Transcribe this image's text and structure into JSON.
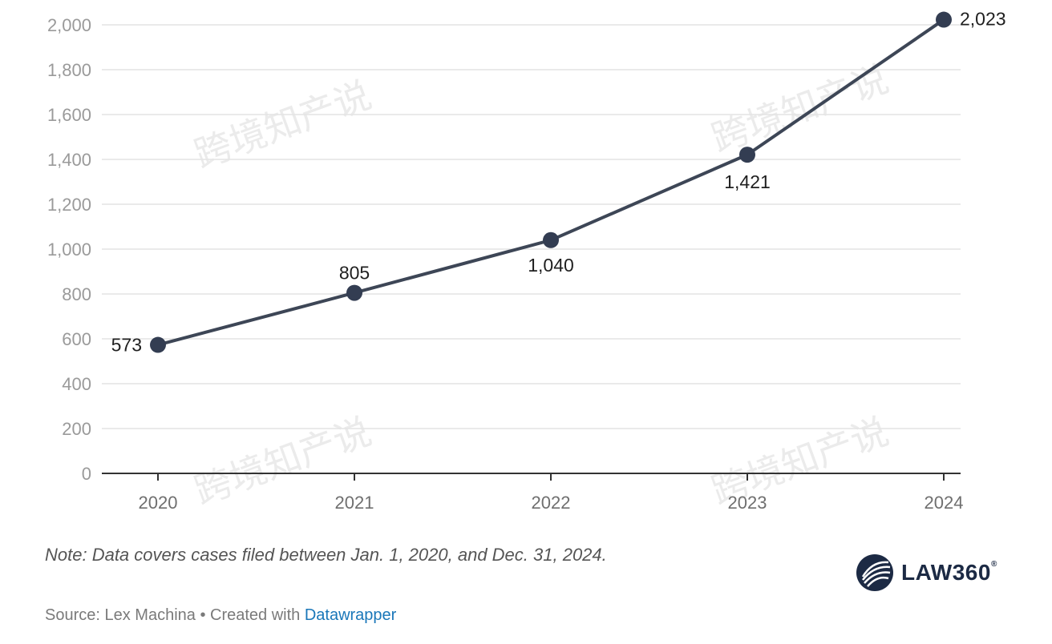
{
  "chart_data": {
    "type": "line",
    "categories": [
      "2020",
      "2021",
      "2022",
      "2023",
      "2024"
    ],
    "series": [
      {
        "values": [
          573,
          805,
          1040,
          1421,
          2023
        ],
        "labels": [
          "573",
          "805",
          "1,040",
          "1,421",
          "2,023"
        ]
      }
    ],
    "yticks": [
      "0",
      "200",
      "400",
      "600",
      "800",
      "1,000",
      "1,200",
      "1,400",
      "1,600",
      "1,800",
      "2,000"
    ],
    "ylim": [
      0,
      2000
    ],
    "grid": true,
    "line_color": "#3d4656",
    "marker_color": "#333d52"
  },
  "footer": {
    "note": "Note: Data covers cases filed between Jan. 1, 2020, and Dec. 31, 2024.",
    "source_prefix": "Source: Lex Machina • Created with ",
    "source_link": "Datawrapper",
    "link_color": "#1a77b9"
  },
  "logo": {
    "name": "LAW360",
    "mark": "®",
    "icon": "stylized-law360-icon"
  },
  "watermark": {
    "text": "跨境知产说"
  }
}
